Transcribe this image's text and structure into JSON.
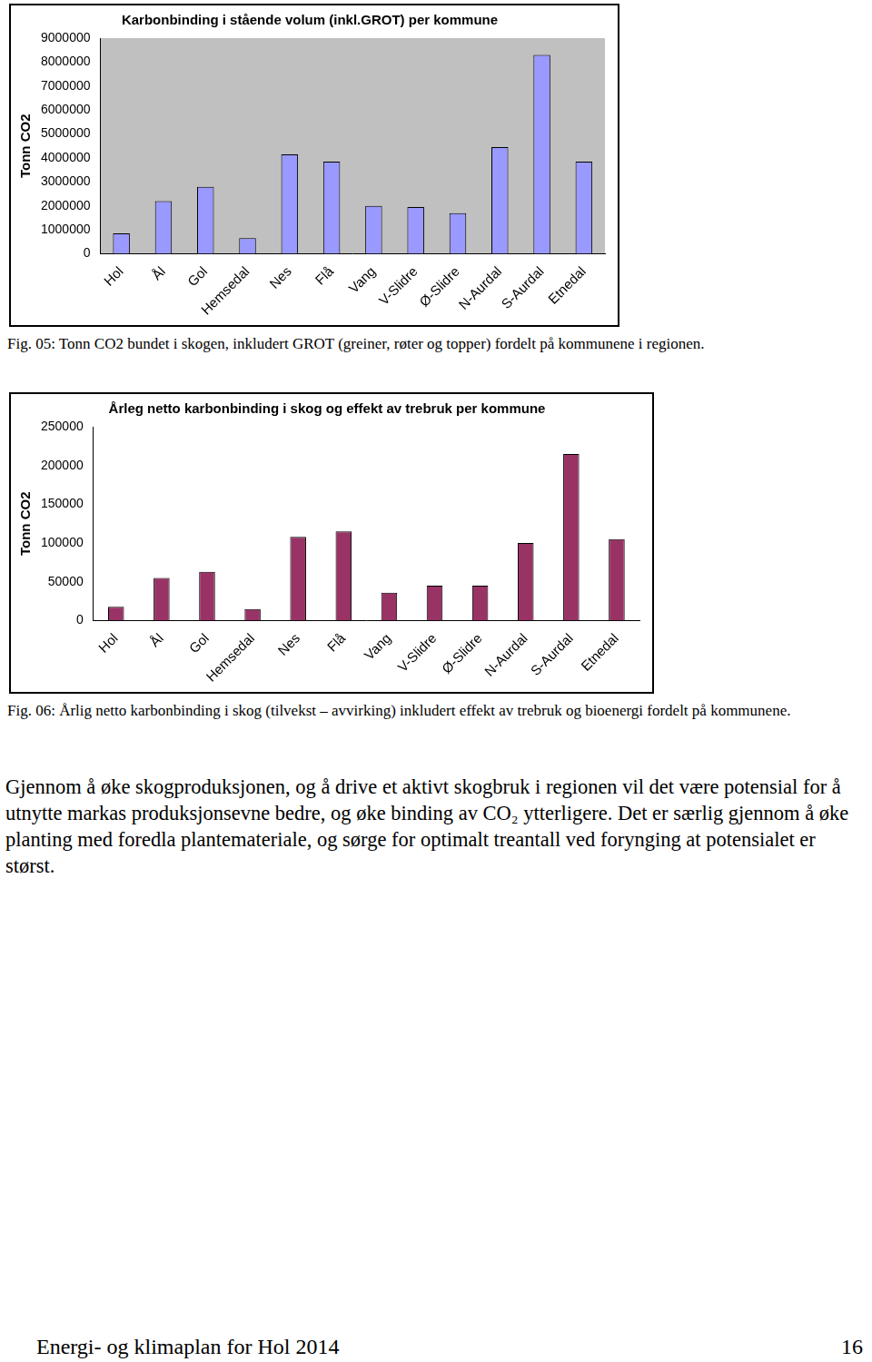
{
  "chart_data": [
    {
      "type": "bar",
      "title": "Karbonbinding i stående volum (inkl.GROT) per kommune",
      "y_label": "Tonn CO2",
      "categories": [
        "Hol",
        "Ål",
        "Gol",
        "Hemsedal",
        "Nes",
        "Flå",
        "Vang",
        "V-Slidre",
        "Ø-Slidre",
        "N-Aurdal",
        "S-Aurdal",
        "Etnedal"
      ],
      "values": [
        850000,
        2200000,
        2800000,
        650000,
        4150000,
        3850000,
        2000000,
        1950000,
        1700000,
        4450000,
        8300000,
        3850000
      ],
      "color": "#9999ff",
      "ylim": [
        0,
        9000000
      ],
      "yticks": [
        0,
        1000000,
        2000000,
        3000000,
        4000000,
        5000000,
        6000000,
        7000000,
        8000000,
        9000000
      ],
      "grid": false
    },
    {
      "type": "bar",
      "title": "Årleg netto karbonbinding i skog og effekt av trebruk per kommune",
      "y_label": "Tonn CO2",
      "categories": [
        "Hol",
        "Ål",
        "Gol",
        "Hemsedal",
        "Nes",
        "Flå",
        "Vang",
        "V-Slidre",
        "Ø-Slidre",
        "N-Aurdal",
        "S-Aurdal",
        "Etnedal"
      ],
      "values": [
        18000,
        55000,
        63000,
        15000,
        108000,
        115000,
        36000,
        45000,
        45000,
        100000,
        215000,
        105000
      ],
      "color": "#993366",
      "ylim": [
        0,
        250000
      ],
      "yticks": [
        0,
        50000,
        100000,
        150000,
        200000,
        250000
      ],
      "grid": false
    }
  ],
  "captions": [
    "Fig. 05: Tonn CO2 bundet i skogen, inkludert GROT (greiner, røter og topper) fordelt på kommunene i regionen.",
    "Fig. 06: Årlig netto karbonbinding i skog (tilvekst – avvirking) inkludert effekt av trebruk og bioenergi fordelt på kommunene."
  ],
  "body_text": "Gjennom å øke skogproduksjonen, og å drive et aktivt skogbruk i regionen vil det være potensial for å utnytte markas produksjonsevne bedre, og øke binding av CO₂ ytterligere. Det er særlig gjennom å øke planting med foredla plantemateriale, og sørge for optimalt treantall ved forynging at potensialet er størst.",
  "footer": {
    "left": "Energi- og klimaplan for Hol 2014",
    "page": "16"
  }
}
